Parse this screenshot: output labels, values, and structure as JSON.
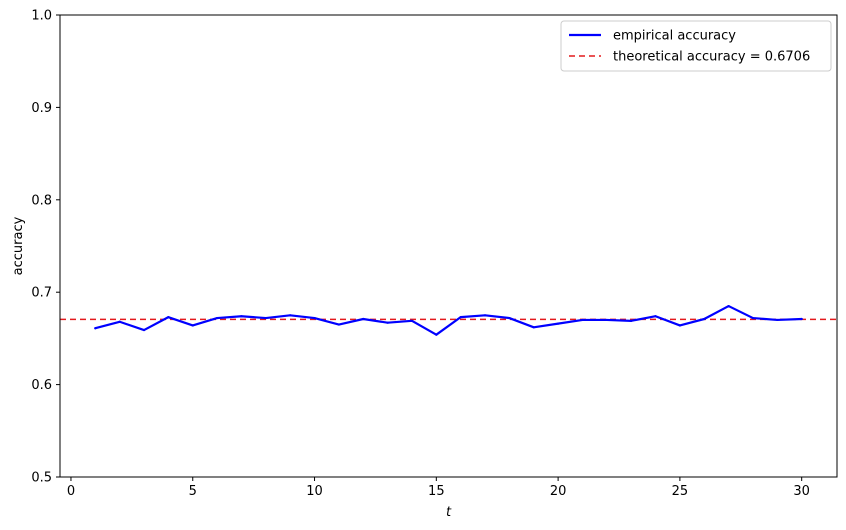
{
  "chart_data": {
    "type": "line",
    "xlabel": "t",
    "ylabel": "accuracy",
    "xlim": [
      -0.45,
      31.45
    ],
    "ylim": [
      0.5,
      1.0
    ],
    "xticks": [
      0,
      5,
      10,
      15,
      20,
      25,
      30
    ],
    "yticks": [
      0.5,
      0.6,
      0.7,
      0.8,
      0.9,
      1.0
    ],
    "grid": false,
    "legend_position": "top-right",
    "x": [
      1,
      2,
      3,
      4,
      5,
      6,
      7,
      8,
      9,
      10,
      11,
      12,
      13,
      14,
      15,
      16,
      17,
      18,
      19,
      20,
      21,
      22,
      23,
      24,
      25,
      26,
      27,
      28,
      29,
      30
    ],
    "series": [
      {
        "name": "empirical accuracy",
        "color": "#0000ff",
        "line_style": "solid",
        "values": [
          0.661,
          0.668,
          0.659,
          0.673,
          0.664,
          0.672,
          0.674,
          0.672,
          0.675,
          0.672,
          0.665,
          0.671,
          0.667,
          0.669,
          0.654,
          0.673,
          0.675,
          0.672,
          0.662,
          0.666,
          0.67,
          0.67,
          0.669,
          0.674,
          0.664,
          0.671,
          0.685,
          0.672,
          0.67,
          0.671
        ]
      }
    ],
    "reference_lines": [
      {
        "name": "theoretical accuracy = 0.6706",
        "value": 0.6706,
        "color": "#e31a1c",
        "line_style": "dashed"
      }
    ]
  }
}
